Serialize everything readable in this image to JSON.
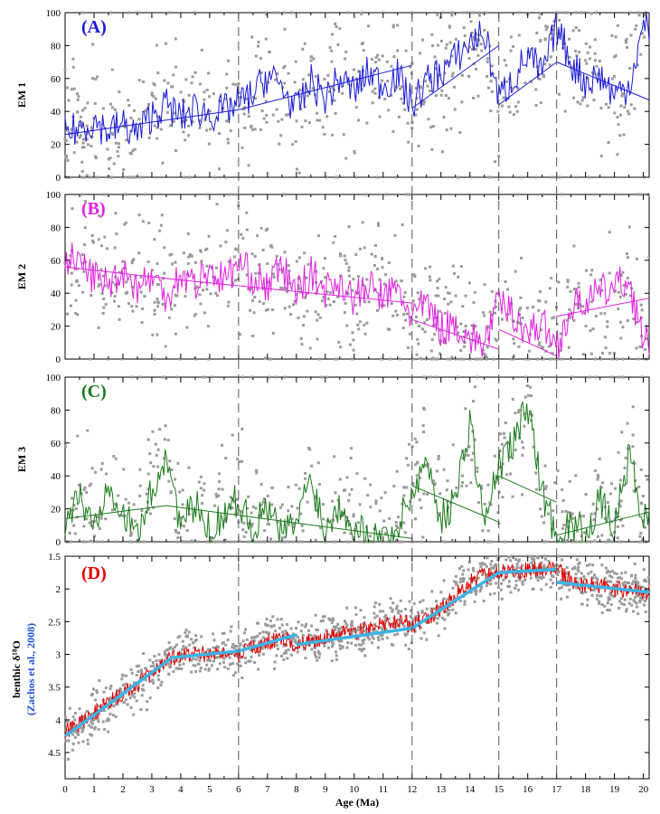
{
  "figure": {
    "x_axis_label": "Age (Ma)",
    "x_ticks": [
      0,
      1,
      2,
      3,
      4,
      5,
      6,
      7,
      8,
      9,
      10,
      11,
      12,
      13,
      14,
      15,
      16,
      17,
      18,
      19,
      20
    ],
    "xlim": [
      0,
      20.2
    ],
    "boundaries_ma": [
      6,
      12,
      15,
      17
    ]
  },
  "chart_data": [
    {
      "type": "line",
      "panel": "A",
      "title": "(A)",
      "ylabel": "EM 1",
      "ylim": [
        0,
        100
      ],
      "y_ticks": [
        0,
        20,
        40,
        60,
        80,
        100
      ],
      "colors": {
        "line": "#1a1ad6",
        "tag": "#1a1ad6",
        "points": "#9a9a9a"
      },
      "series": [
        {
          "name": "EM 1 record",
          "x": [
            0,
            0.5,
            1,
            1.5,
            2,
            2.5,
            3,
            3.5,
            4,
            4.5,
            5,
            5.5,
            6,
            6.5,
            7,
            7.5,
            8,
            8.5,
            9,
            9.5,
            10,
            10.5,
            11,
            11.5,
            12,
            12.5,
            13,
            13.5,
            14,
            14.5,
            15,
            15.5,
            16,
            16.5,
            17,
            17.5,
            18,
            18.5,
            19,
            19.5,
            20
          ],
          "y": [
            26,
            30,
            34,
            28,
            32,
            26,
            38,
            44,
            36,
            42,
            38,
            40,
            45,
            50,
            62,
            55,
            40,
            58,
            48,
            60,
            52,
            64,
            56,
            62,
            44,
            58,
            64,
            72,
            82,
            88,
            48,
            60,
            74,
            62,
            92,
            70,
            58,
            62,
            50,
            56,
            90
          ]
        },
        {
          "name": "EM 1 trend 0-12 Ma",
          "x": [
            0,
            6,
            12
          ],
          "y": [
            26,
            41,
            68
          ]
        },
        {
          "name": "EM 1 trend 12-15 Ma",
          "x": [
            12,
            15
          ],
          "y": [
            42,
            80
          ]
        },
        {
          "name": "EM 1 trend 15-17 Ma",
          "x": [
            15,
            17
          ],
          "y": [
            44,
            70
          ]
        },
        {
          "name": "EM 1 trend 17-20.2 Ma",
          "x": [
            17,
            20.2
          ],
          "y": [
            70,
            47
          ]
        }
      ]
    },
    {
      "type": "line",
      "panel": "B",
      "title": "(B)",
      "ylabel": "EM 2",
      "ylim": [
        0,
        100
      ],
      "y_ticks": [
        0,
        20,
        40,
        60,
        80,
        100
      ],
      "colors": {
        "line": "#e020e0",
        "tag": "#e020e0",
        "points": "#9a9a9a"
      },
      "series": [
        {
          "name": "EM 2 record",
          "x": [
            0,
            0.5,
            1,
            1.5,
            2,
            2.5,
            3,
            3.5,
            4,
            4.5,
            5,
            5.5,
            6,
            6.5,
            7,
            7.5,
            8,
            8.5,
            9,
            9.5,
            10,
            10.5,
            11,
            11.5,
            12,
            12.5,
            13,
            13.5,
            14,
            14.5,
            15,
            15.5,
            16,
            16.5,
            17,
            17.5,
            18,
            18.5,
            19,
            19.5,
            20
          ],
          "y": [
            62,
            58,
            50,
            46,
            54,
            44,
            50,
            38,
            52,
            46,
            54,
            48,
            58,
            50,
            44,
            56,
            40,
            52,
            42,
            48,
            36,
            44,
            38,
            42,
            26,
            34,
            18,
            22,
            12,
            10,
            34,
            28,
            16,
            22,
            8,
            30,
            36,
            40,
            44,
            48,
            10
          ]
        },
        {
          "name": "EM 2 trend 0-12 Ma",
          "x": [
            0,
            4,
            12
          ],
          "y": [
            56,
            48,
            34
          ]
        },
        {
          "name": "EM 2 trend 12-15 Ma",
          "x": [
            12,
            15
          ],
          "y": [
            24,
            6
          ]
        },
        {
          "name": "EM 2 trend 15-17 Ma",
          "x": [
            15,
            17
          ],
          "y": [
            18,
            2
          ]
        },
        {
          "name": "EM 2 trend 17-20.2 Ma",
          "x": [
            17,
            20.2
          ],
          "y": [
            26,
            37
          ]
        }
      ]
    },
    {
      "type": "line",
      "panel": "C",
      "title": "(C)",
      "ylabel": "EM 3",
      "ylim": [
        0,
        100
      ],
      "y_ticks": [
        0,
        20,
        40,
        60,
        80,
        100
      ],
      "colors": {
        "line": "#1a7a1a",
        "tag": "#1a7a1a",
        "points": "#9a9a9a"
      },
      "series": [
        {
          "name": "EM 3 record",
          "x": [
            0,
            0.5,
            1,
            1.5,
            2,
            2.5,
            3,
            3.5,
            4,
            4.5,
            5,
            5.5,
            6,
            6.5,
            7,
            7.5,
            8,
            8.5,
            9,
            9.5,
            10,
            10.5,
            11,
            11.5,
            12,
            12.5,
            13,
            13.5,
            14,
            14.5,
            15,
            15.5,
            16,
            16.5,
            17,
            17.5,
            18,
            18.5,
            19,
            19.5,
            20
          ],
          "y": [
            12,
            28,
            8,
            40,
            16,
            4,
            30,
            54,
            10,
            22,
            6,
            18,
            26,
            8,
            20,
            4,
            12,
            40,
            6,
            24,
            10,
            4,
            2,
            8,
            30,
            50,
            14,
            26,
            74,
            10,
            46,
            60,
            84,
            30,
            4,
            10,
            6,
            24,
            8,
            52,
            14
          ]
        },
        {
          "name": "EM 3 trend 0-12 Ma",
          "x": [
            0,
            3.5,
            12
          ],
          "y": [
            14,
            22,
            2
          ]
        },
        {
          "name": "EM 3 trend 12-15 Ma",
          "x": [
            12,
            15
          ],
          "y": [
            34,
            12
          ]
        },
        {
          "name": "EM 3 trend 15-17 Ma",
          "x": [
            15,
            17
          ],
          "y": [
            40,
            24
          ]
        },
        {
          "name": "EM 3 trend 17-20.2 Ma",
          "x": [
            17,
            20.2
          ],
          "y": [
            4,
            18
          ]
        }
      ]
    },
    {
      "type": "line",
      "panel": "D",
      "title": "(D)",
      "ylabel": "benthic δ¹⁸O",
      "ylabel_source": "(Zachos et al., 2008)",
      "ylim": [
        4.9,
        1.5
      ],
      "y_ticks": [
        1.5,
        2,
        2.5,
        3,
        3.5,
        4,
        4.5
      ],
      "y_tick_labels": [
        "1.5",
        "2",
        "2.5",
        "3",
        "3.5",
        "4",
        "4.5"
      ],
      "colors": {
        "line": "#e00000",
        "tag": "#e00000",
        "trend": "#3cb4e6",
        "points": "#9a9a9a",
        "source": "#1f4fd6"
      },
      "series": [
        {
          "name": "benthic δ18O record",
          "x": [
            0,
            0.5,
            1,
            1.5,
            2,
            2.5,
            3,
            3.5,
            4,
            4.5,
            5,
            5.5,
            6,
            6.5,
            7,
            7.5,
            8,
            8.5,
            9,
            9.5,
            10,
            10.5,
            11,
            11.5,
            12,
            12.5,
            13,
            13.5,
            14,
            14.5,
            15,
            15.5,
            16,
            16.5,
            17,
            17.5,
            18,
            18.5,
            19,
            19.5,
            20
          ],
          "y": [
            4.2,
            4.05,
            3.9,
            3.75,
            3.6,
            3.45,
            3.3,
            3.1,
            3.0,
            3.0,
            3.0,
            2.95,
            3.0,
            2.9,
            2.8,
            2.75,
            2.85,
            2.8,
            2.75,
            2.7,
            2.65,
            2.6,
            2.55,
            2.5,
            2.55,
            2.45,
            2.3,
            2.1,
            1.9,
            1.8,
            1.75,
            1.75,
            1.7,
            1.7,
            1.7,
            1.9,
            1.95,
            1.95,
            2.0,
            2.0,
            2.05
          ]
        },
        {
          "name": "benthic δ18O trend 0-8 Ma",
          "x": [
            0,
            3.7,
            6,
            8
          ],
          "y": [
            4.25,
            3.05,
            2.95,
            2.7
          ]
        },
        {
          "name": "benthic δ18O trend 8-17 Ma",
          "x": [
            8,
            12,
            15,
            17
          ],
          "y": [
            2.85,
            2.6,
            1.75,
            1.7
          ]
        },
        {
          "name": "benthic δ18O trend 17-20.2 Ma",
          "x": [
            17,
            20.2
          ],
          "y": [
            1.9,
            2.05
          ]
        }
      ]
    }
  ]
}
